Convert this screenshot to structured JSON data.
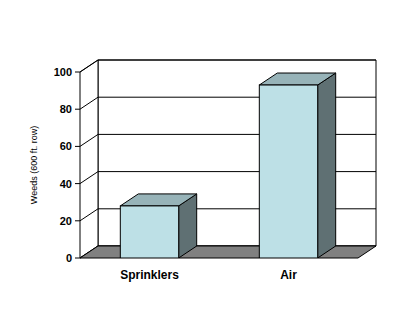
{
  "chart_data": {
    "type": "bar",
    "ylabel": "Weeds (600 ft. row)",
    "categories": [
      "Sprinklers",
      "Air"
    ],
    "values": [
      28,
      93
    ],
    "color": "#bde0e6",
    "ylim": [
      0,
      100
    ],
    "yticks": [
      0,
      20,
      40,
      60,
      80,
      100
    ],
    "grid": true
  }
}
